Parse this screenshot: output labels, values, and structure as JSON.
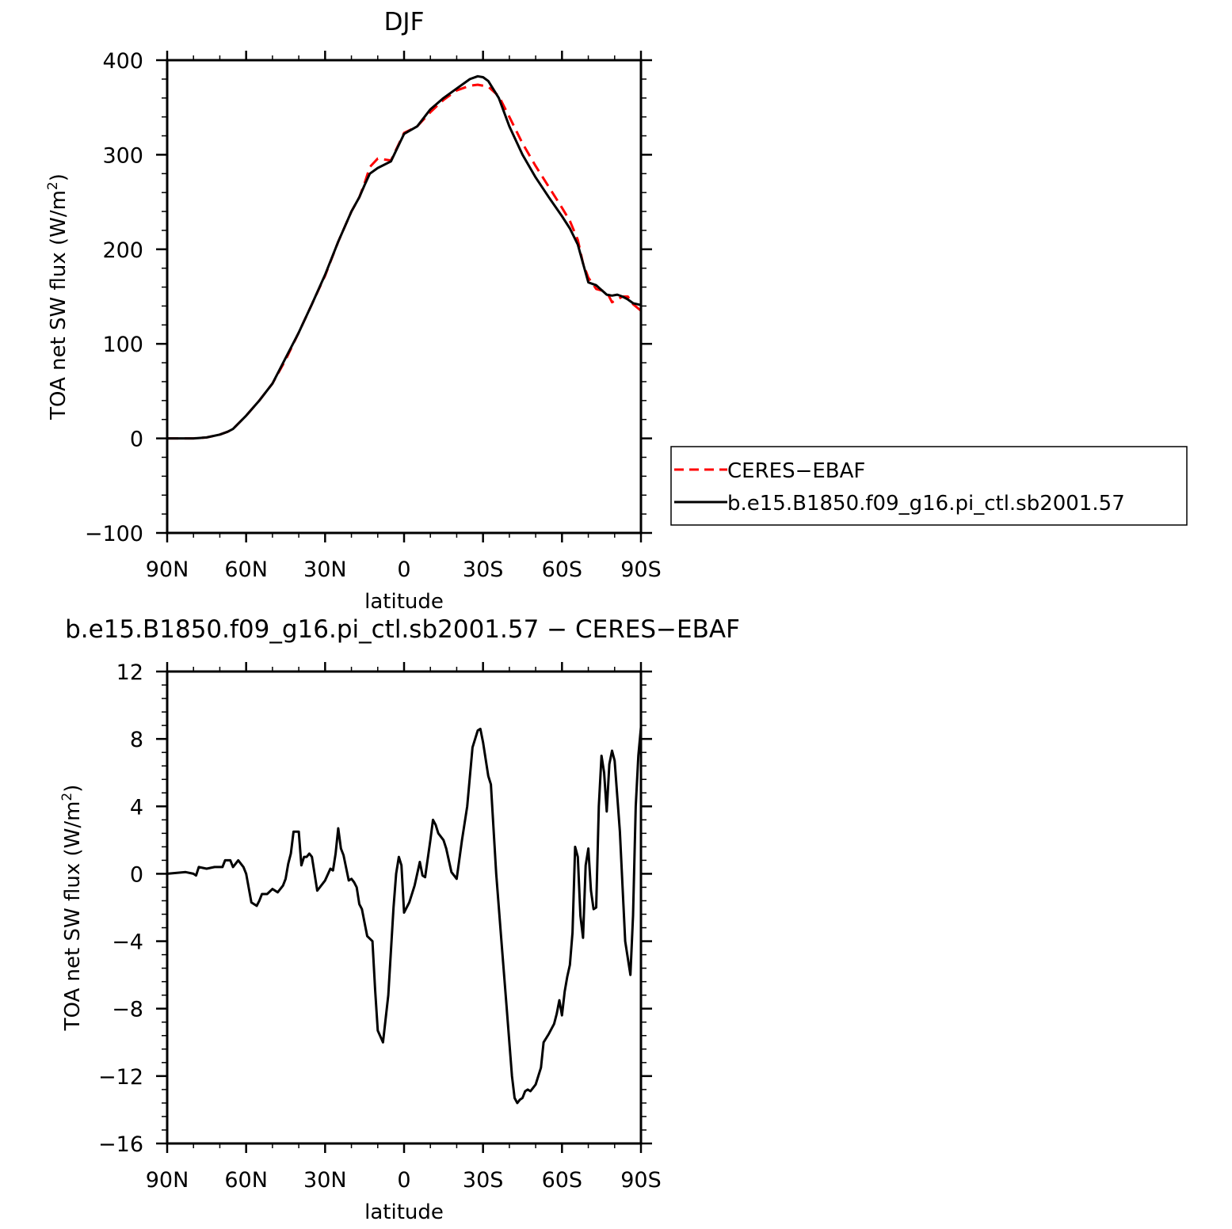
{
  "chart_data": [
    {
      "type": "line",
      "title": "DJF",
      "xlabel": "latitude",
      "ylabel": "TOA net SW flux (W/m",
      "ylabel_sup": "2",
      "ylabel_close": ")",
      "xlim": [
        -90,
        90
      ],
      "ylim": [
        -100,
        400
      ],
      "x_ticks": [
        -90,
        -60,
        -30,
        0,
        30,
        60,
        90
      ],
      "x_tick_labels": [
        "90N",
        "60N",
        "30N",
        "0",
        "30S",
        "60S",
        "90S"
      ],
      "y_ticks": [
        -100,
        0,
        100,
        200,
        300,
        400
      ],
      "y_tick_labels": [
        "−100",
        "0",
        "100",
        "200",
        "300",
        "400"
      ],
      "legend_position": "right",
      "series": [
        {
          "name": "CERES−EBAF",
          "color": "#ff0000",
          "style": "dashed",
          "x": [
            -90,
            -80,
            -75,
            -70,
            -67,
            -65,
            -60,
            -55,
            -50,
            -45,
            -40,
            -35,
            -30,
            -25,
            -20,
            -17,
            -15,
            -13,
            -10,
            -5,
            0,
            5,
            10,
            15,
            20,
            25,
            28,
            32,
            36,
            40,
            45,
            50,
            55,
            60,
            63,
            66,
            68,
            70,
            73,
            77,
            79,
            81,
            83,
            85,
            87,
            90
          ],
          "values": [
            0,
            0,
            1,
            4,
            7,
            10,
            24,
            40,
            58,
            83,
            112,
            142,
            172,
            208,
            240,
            255,
            270,
            287,
            296,
            294,
            323,
            330,
            345,
            358,
            368,
            373,
            374,
            372,
            362,
            340,
            312,
            288,
            266,
            244,
            230,
            210,
            185,
            170,
            158,
            155,
            144,
            147,
            150,
            150,
            142,
            135
          ]
        },
        {
          "name": "b.e15.B1850.f09_g16.pi_ctl.sb2001.57",
          "color": "#000000",
          "style": "solid",
          "x": [
            -90,
            -80,
            -75,
            -70,
            -67,
            -65,
            -60,
            -55,
            -50,
            -45,
            -40,
            -35,
            -30,
            -25,
            -20,
            -17,
            -15,
            -13,
            -10,
            -5,
            0,
            5,
            10,
            15,
            20,
            25,
            28,
            30,
            32,
            36,
            40,
            45,
            50,
            55,
            60,
            63,
            66,
            68,
            70,
            73,
            77,
            79,
            81,
            83,
            85,
            87,
            90
          ],
          "values": [
            0,
            0,
            1,
            4,
            7,
            10,
            24,
            40,
            58,
            85,
            112,
            142,
            173,
            208,
            240,
            255,
            268,
            280,
            286,
            293,
            322,
            330,
            348,
            360,
            370,
            380,
            383,
            382,
            378,
            360,
            330,
            300,
            276,
            255,
            235,
            222,
            205,
            185,
            165,
            162,
            152,
            151,
            152,
            150,
            147,
            143,
            141
          ]
        }
      ]
    },
    {
      "type": "line",
      "title": "b.e15.B1850.f09_g16.pi_ctl.sb2001.57 − CERES−EBAF",
      "xlabel": "latitude",
      "ylabel": "TOA net SW flux (W/m",
      "ylabel_sup": "2",
      "ylabel_close": ")",
      "xlim": [
        -90,
        90
      ],
      "ylim": [
        -16,
        12
      ],
      "x_ticks": [
        -90,
        -60,
        -30,
        0,
        30,
        60,
        90
      ],
      "x_tick_labels": [
        "90N",
        "60N",
        "30N",
        "0",
        "30S",
        "60S",
        "90S"
      ],
      "y_ticks": [
        -16,
        -12,
        -8,
        -4,
        0,
        4,
        8,
        12
      ],
      "y_tick_labels": [
        "−16",
        "−12",
        "−8",
        "−4",
        "0",
        "4",
        "8",
        "12"
      ],
      "series": [
        {
          "color": "#000000",
          "style": "solid",
          "x": [
            -90,
            -83,
            -80,
            -79,
            -78,
            -75,
            -72,
            -69,
            -68,
            -66,
            -65,
            -63,
            -61,
            -60,
            -58,
            -56,
            -55,
            -54,
            -52,
            -50,
            -48,
            -46,
            -45,
            -44,
            -43,
            -42,
            -40,
            -39,
            -38,
            -37,
            -36,
            -35,
            -33,
            -32,
            -30,
            -28,
            -27,
            -26,
            -25,
            -24,
            -23,
            -21,
            -20,
            -19,
            -18,
            -17,
            -16,
            -14,
            -12,
            -11,
            -10,
            -8,
            -6,
            -4,
            -3,
            -2,
            -1,
            0,
            2,
            4,
            6,
            7,
            8,
            10,
            11,
            12,
            13,
            15,
            16,
            18,
            20,
            22,
            24,
            26,
            28,
            29,
            30,
            32,
            33,
            35,
            37,
            39,
            41,
            42,
            43,
            44,
            45,
            46,
            47,
            48,
            49,
            50,
            52,
            53,
            55,
            56,
            57,
            58,
            59,
            60,
            61,
            62,
            63,
            64,
            65,
            66,
            67,
            68,
            69,
            70,
            71,
            72,
            73,
            74,
            75,
            76,
            77,
            78,
            79,
            80,
            82,
            84,
            86,
            87,
            88,
            89,
            90
          ],
          "values": [
            0.0,
            0.1,
            0.0,
            -0.1,
            0.4,
            0.3,
            0.4,
            0.4,
            0.8,
            0.8,
            0.4,
            0.8,
            0.4,
            0.0,
            -1.7,
            -1.9,
            -1.6,
            -1.2,
            -1.2,
            -0.9,
            -1.1,
            -0.7,
            -0.3,
            0.6,
            1.2,
            2.5,
            2.5,
            0.5,
            1.0,
            1.0,
            1.2,
            1.0,
            -1.0,
            -0.8,
            -0.4,
            0.3,
            0.2,
            1.2,
            2.7,
            1.5,
            1.1,
            -0.4,
            -0.3,
            -0.5,
            -0.8,
            -1.8,
            -2.1,
            -3.7,
            -4.0,
            -6.9,
            -9.3,
            -10.0,
            -7.2,
            -2.0,
            0.0,
            1.0,
            0.5,
            -2.3,
            -1.7,
            -0.7,
            0.7,
            -0.1,
            -0.2,
            2.0,
            3.2,
            2.9,
            2.4,
            2.0,
            1.5,
            0.1,
            -0.3,
            2.0,
            4.0,
            7.5,
            8.5,
            8.6,
            7.8,
            5.8,
            5.3,
            0.0,
            -4.0,
            -8.0,
            -12.0,
            -13.3,
            -13.6,
            -13.4,
            -13.3,
            -12.9,
            -12.8,
            -12.9,
            -12.7,
            -12.5,
            -11.5,
            -10.0,
            -9.5,
            -9.2,
            -8.9,
            -8.3,
            -7.5,
            -8.4,
            -7.0,
            -6.1,
            -5.4,
            -3.5,
            1.6,
            1.0,
            -2.5,
            -3.8,
            0.5,
            1.5,
            -1.0,
            -2.1,
            -2.0,
            4.0,
            7.0,
            6.0,
            3.7,
            6.5,
            7.3,
            6.7,
            2.5,
            -4.0,
            -6.0,
            -2.5,
            4.0,
            7.0,
            8.7
          ]
        }
      ]
    }
  ]
}
